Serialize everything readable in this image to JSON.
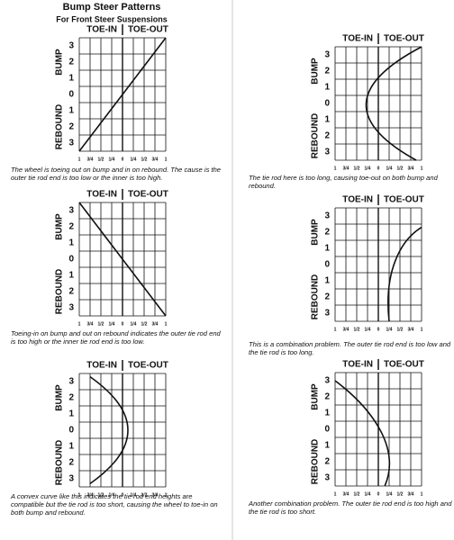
{
  "header": {
    "title": "Bump Steer Patterns",
    "subtitle": "For Front Steer Suspensions"
  },
  "grid": {
    "toe_in": "TOE-IN",
    "toe_out": "TOE-OUT",
    "bump": "BUMP",
    "rebound": "REBOUND",
    "rows": [
      3,
      2,
      1,
      0,
      1,
      2,
      3
    ],
    "cols": [
      "1",
      "3/4",
      "1/2",
      "1/4",
      "0",
      "1/4",
      "1/2",
      "3/4",
      "1"
    ]
  },
  "panels": [
    {
      "caption": "The wheel is toeing out on bump and in on rebound. The cause is the outer tie rod end is too low or the inner is too high."
    },
    {
      "caption": "Toeing-in on bump and out on rebound indicates the outer tie rod end is too high or the inner tie rod end is too low."
    },
    {
      "caption": "A convex curve like this indicates the tie rod end heights are compatible but the tie rod is too short, causing the wheel to toe-in on both bump and rebound."
    },
    {
      "caption": "The tie rod here is too long, causing toe-out on both bump and rebound."
    },
    {
      "caption": "This is a combination problem. The outer tie rod end is too low and the tie rod is too long."
    },
    {
      "caption": "Another combination problem. The outer tie rod end is too high and the tie rod is too short."
    }
  ]
}
